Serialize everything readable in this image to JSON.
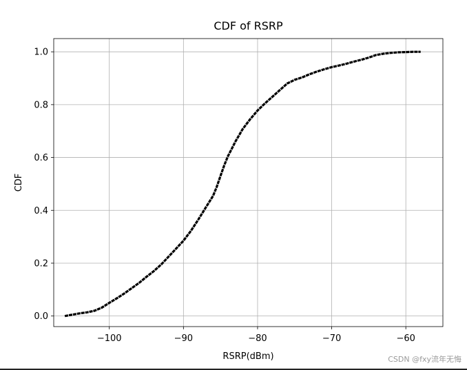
{
  "chart_data": {
    "type": "line",
    "title": "CDF of RSRP",
    "xlabel": "RSRP(dBm)",
    "ylabel": "CDF",
    "xlim": [
      -107.5,
      -55
    ],
    "ylim": [
      -0.04,
      1.05
    ],
    "xticks": [
      -100,
      -90,
      -80,
      -70,
      -60
    ],
    "xtick_labels": [
      "−100",
      "−90",
      "−80",
      "−70",
      "−60"
    ],
    "yticks": [
      0.0,
      0.2,
      0.4,
      0.6,
      0.8,
      1.0
    ],
    "ytick_labels": [
      "0.0",
      "0.2",
      "0.4",
      "0.6",
      "0.8",
      "1.0"
    ],
    "grid": true,
    "series": [
      {
        "color": "#000000",
        "x": [
          -106,
          -105,
          -104,
          -103,
          -102,
          -101,
          -100,
          -99,
          -98,
          -97,
          -96,
          -95,
          -94,
          -93,
          -92,
          -91,
          -90,
          -89,
          -88,
          -87,
          -86,
          -85.5,
          -85,
          -84.5,
          -84,
          -83.5,
          -83,
          -82,
          -81,
          -80,
          -79,
          -78,
          -77,
          -76,
          -75,
          -74,
          -73,
          -72,
          -71,
          -70,
          -69,
          -68,
          -67,
          -66,
          -65,
          -64,
          -63,
          -62,
          -61,
          -60,
          -59,
          -58
        ],
        "y": [
          0.0,
          0.005,
          0.01,
          0.014,
          0.02,
          0.032,
          0.05,
          0.067,
          0.085,
          0.105,
          0.125,
          0.148,
          0.17,
          0.195,
          0.225,
          0.255,
          0.285,
          0.322,
          0.365,
          0.41,
          0.455,
          0.49,
          0.53,
          0.57,
          0.605,
          0.632,
          0.66,
          0.708,
          0.745,
          0.778,
          0.805,
          0.83,
          0.855,
          0.88,
          0.894,
          0.903,
          0.915,
          0.925,
          0.934,
          0.942,
          0.948,
          0.955,
          0.963,
          0.97,
          0.978,
          0.988,
          0.993,
          0.996,
          0.998,
          0.999,
          1.0,
          1.0
        ]
      }
    ]
  },
  "watermark": "CSDN @fxy流年无悔"
}
